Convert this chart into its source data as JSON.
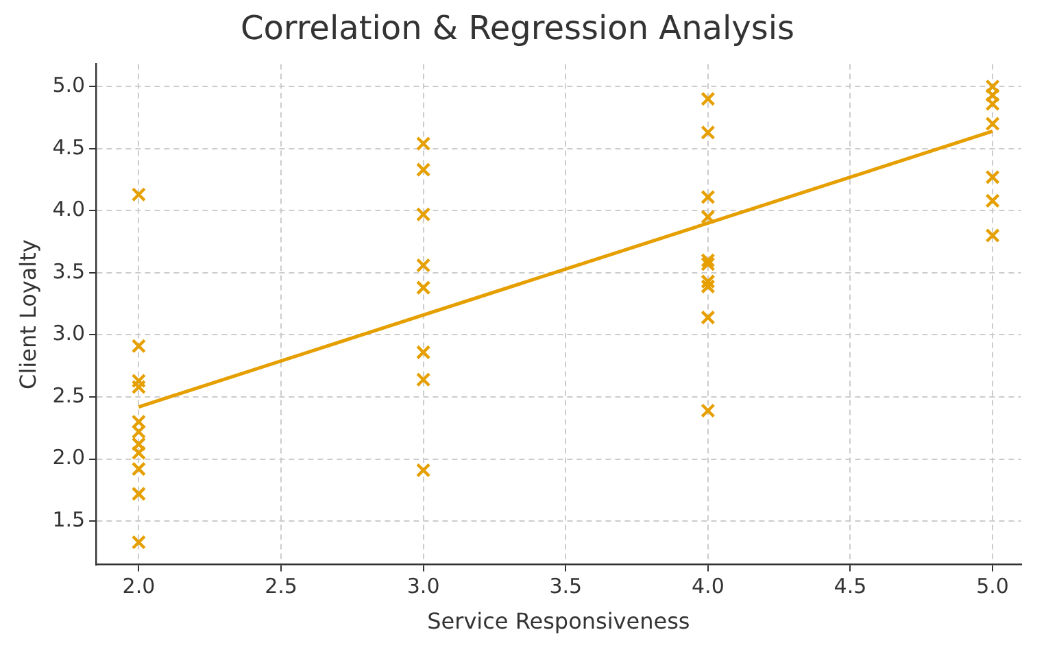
{
  "chart_data": {
    "type": "scatter",
    "title": "Correlation & Regression Analysis",
    "xlabel": "Service Responsiveness",
    "ylabel": "Client Loyalty",
    "series": [
      {
        "color": "#e69f00",
        "marker": "cross",
        "x": [
          2,
          2,
          2,
          2,
          2,
          2,
          2,
          2,
          2,
          2,
          2,
          3,
          3,
          3,
          3,
          3,
          3,
          3,
          3,
          4,
          4,
          4,
          4,
          4,
          4,
          4,
          4,
          4,
          4,
          5,
          5,
          5,
          5,
          5,
          5,
          5
        ],
        "values": [
          4.13,
          2.91,
          2.63,
          2.58,
          2.3,
          2.22,
          2.12,
          2.05,
          1.92,
          1.72,
          1.33,
          4.54,
          4.33,
          3.97,
          3.56,
          3.38,
          2.86,
          2.64,
          1.91,
          4.9,
          4.63,
          4.11,
          3.95,
          3.6,
          3.57,
          3.43,
          3.39,
          3.14,
          2.39,
          5.0,
          4.93,
          4.86,
          4.7,
          4.27,
          4.08,
          3.8
        ]
      },
      {
        "type": "line",
        "color": "#e69f00",
        "x": [
          2,
          5
        ],
        "values": [
          2.42,
          4.64
        ]
      }
    ],
    "xlim": [
      1.85,
      5.1
    ],
    "ylim": [
      1.15,
      5.18
    ],
    "xticks": [
      {
        "value": 2,
        "label": "2.0"
      },
      2.5,
      {
        "value": 3,
        "label": "3.0"
      },
      3.5,
      {
        "value": 4,
        "label": "4.0"
      },
      4.5,
      {
        "value": 5,
        "label": "5.0"
      }
    ],
    "yticks": [
      1.5,
      {
        "value": 2,
        "label": "2.0"
      },
      2.5,
      {
        "value": 3,
        "label": "3.0"
      },
      3.5,
      {
        "value": 4,
        "label": "4.0"
      },
      4.5,
      {
        "value": 5,
        "label": "5.0"
      }
    ],
    "grid": true
  }
}
